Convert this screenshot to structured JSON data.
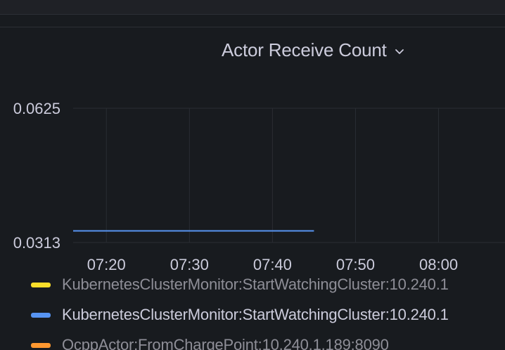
{
  "panel": {
    "title": "Actor Receive Count"
  },
  "chart_data": {
    "type": "line",
    "title": "Actor Receive Count",
    "xlabel": "",
    "ylabel": "",
    "x_ticks": [
      "07:20",
      "07:30",
      "07:40",
      "07:50",
      "08:00"
    ],
    "y_ticks": [
      "0.0625",
      "0.0313"
    ],
    "ylim": [
      0.0313,
      0.0625
    ],
    "x_range": [
      "07:16",
      "08:08"
    ],
    "grid": true,
    "legend_position": "bottom",
    "series": [
      {
        "name": "KubernetesClusterMonitor:StartWatchingCluster:10.240.1",
        "color": "#fade2a",
        "x": [],
        "values": [],
        "dimmed": true
      },
      {
        "name": "KubernetesClusterMonitor:StartWatchingCluster:10.240.1",
        "color": "#5794f2",
        "x": [
          "07:16",
          "07:45"
        ],
        "values": [
          0.034,
          0.034
        ],
        "dimmed": false
      },
      {
        "name": "OcppActor:FromChargePoint:10.240.1.189:8090",
        "color": "#ff9830",
        "x": [],
        "values": [],
        "dimmed": true
      }
    ]
  }
}
